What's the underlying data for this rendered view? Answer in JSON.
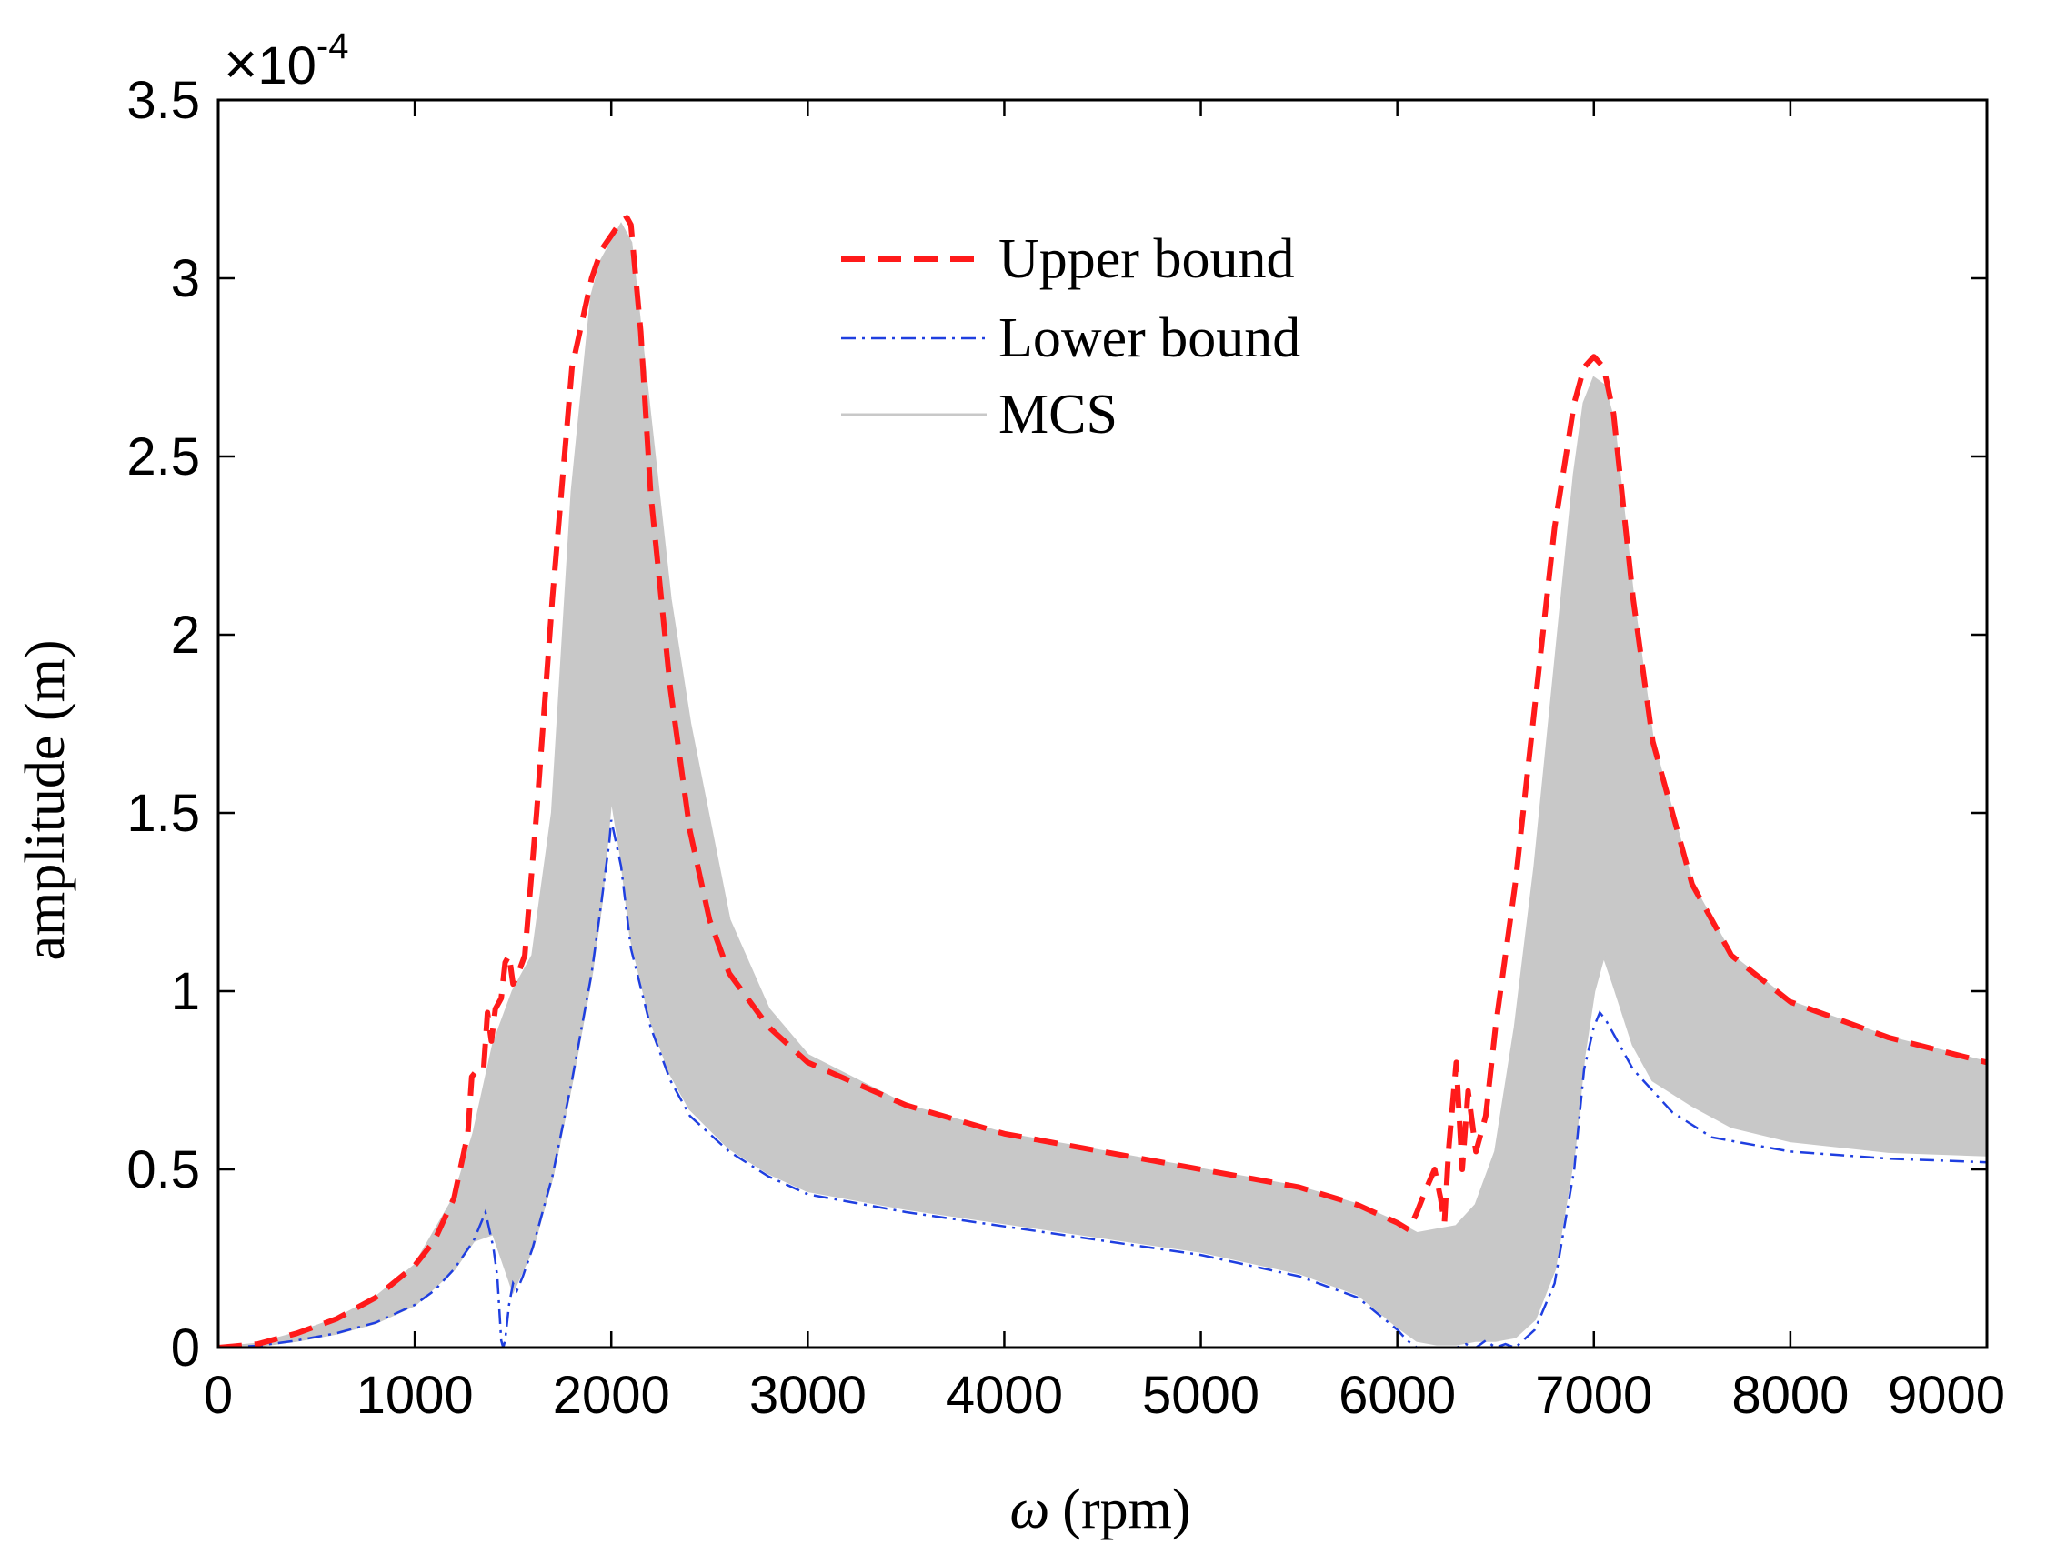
{
  "chart_data": {
    "type": "line",
    "title": "",
    "xlabel_symbol": "ω",
    "xlabel_unit": "(rpm)",
    "ylabel": "amplitude (m)",
    "y_multiplier": {
      "times": "×",
      "base": "10",
      "exponent": "-4"
    },
    "xlim": [
      0,
      9000
    ],
    "ylim": [
      0,
      3.5
    ],
    "x_ticks": [
      0,
      1000,
      2000,
      3000,
      4000,
      5000,
      6000,
      7000,
      8000,
      9000
    ],
    "x_tick_labels": [
      "0",
      "1000",
      "2000",
      "3000",
      "4000",
      "5000",
      "6000",
      "7000",
      "8000",
      "9000"
    ],
    "y_ticks": [
      0,
      0.5,
      1,
      1.5,
      2,
      2.5,
      3,
      3.5
    ],
    "y_tick_labels": [
      "0",
      "0.5",
      "1",
      "1.5",
      "2",
      "2.5",
      "3",
      "3.5"
    ],
    "grid": false,
    "legend_position": "top-center",
    "colors": {
      "upper": "#ff1a1a",
      "lower": "#1f3fe0",
      "mcs": "#c8c8c8"
    },
    "series": [
      {
        "name": "Upper bound",
        "style": "dashed",
        "x": [
          0,
          200,
          400,
          600,
          800,
          1000,
          1100,
          1200,
          1270,
          1290,
          1320,
          1350,
          1370,
          1390,
          1410,
          1440,
          1460,
          1480,
          1500,
          1520,
          1560,
          1620,
          1700,
          1800,
          1900,
          1950,
          2000,
          2050,
          2080,
          2100,
          2150,
          2200,
          2300,
          2400,
          2500,
          2600,
          2800,
          3000,
          3500,
          4000,
          4500,
          5000,
          5500,
          5800,
          6000,
          6060,
          6100,
          6150,
          6190,
          6220,
          6240,
          6260,
          6300,
          6330,
          6360,
          6400,
          6450,
          6500,
          6600,
          6700,
          6800,
          6900,
          6950,
          7000,
          7050,
          7100,
          7200,
          7300,
          7500,
          7700,
          8000,
          8500,
          9000
        ],
        "values": [
          0.0,
          0.01,
          0.04,
          0.08,
          0.14,
          0.23,
          0.3,
          0.42,
          0.6,
          0.76,
          0.78,
          0.78,
          0.94,
          0.86,
          0.95,
          0.98,
          1.08,
          1.1,
          1.02,
          1.04,
          1.1,
          1.5,
          2.1,
          2.75,
          3.0,
          3.08,
          3.12,
          3.16,
          3.17,
          3.15,
          2.85,
          2.4,
          1.85,
          1.45,
          1.2,
          1.05,
          0.9,
          0.8,
          0.68,
          0.6,
          0.55,
          0.5,
          0.45,
          0.4,
          0.35,
          0.33,
          0.38,
          0.45,
          0.5,
          0.42,
          0.35,
          0.55,
          0.8,
          0.5,
          0.72,
          0.55,
          0.65,
          0.9,
          1.3,
          1.8,
          2.3,
          2.65,
          2.75,
          2.78,
          2.75,
          2.62,
          2.1,
          1.7,
          1.3,
          1.1,
          0.97,
          0.87,
          0.8
        ]
      },
      {
        "name": "Lower bound",
        "style": "dash-dot",
        "x": [
          0,
          200,
          400,
          600,
          800,
          1000,
          1100,
          1200,
          1300,
          1360,
          1400,
          1420,
          1440,
          1450,
          1460,
          1480,
          1500,
          1520,
          1550,
          1600,
          1700,
          1800,
          1900,
          1950,
          1990,
          2000,
          2050,
          2100,
          2200,
          2300,
          2400,
          2600,
          2800,
          3000,
          3500,
          4000,
          4500,
          5000,
          5500,
          5800,
          6000,
          6050,
          6100,
          6200,
          6300,
          6350,
          6380,
          6400,
          6450,
          6500,
          6550,
          6600,
          6700,
          6800,
          6900,
          6950,
          7000,
          7030,
          7060,
          7100,
          7200,
          7400,
          7600,
          8000,
          8500,
          9000
        ],
        "values": [
          0.0,
          0.005,
          0.02,
          0.04,
          0.07,
          0.12,
          0.16,
          0.22,
          0.3,
          0.38,
          0.28,
          0.2,
          0.02,
          0.0,
          0.02,
          0.12,
          0.18,
          0.16,
          0.2,
          0.28,
          0.48,
          0.75,
          1.05,
          1.25,
          1.42,
          1.48,
          1.35,
          1.12,
          0.9,
          0.75,
          0.65,
          0.55,
          0.48,
          0.43,
          0.38,
          0.34,
          0.3,
          0.26,
          0.2,
          0.14,
          0.05,
          0.02,
          0.0,
          0.0,
          0.0,
          0.01,
          0.0,
          0.0,
          0.02,
          0.0,
          0.01,
          0.0,
          0.05,
          0.18,
          0.5,
          0.78,
          0.9,
          0.94,
          0.92,
          0.88,
          0.78,
          0.66,
          0.59,
          0.55,
          0.53,
          0.52
        ]
      },
      {
        "name": "MCS",
        "style": "band",
        "x": [
          0,
          200,
          400,
          600,
          800,
          1000,
          1200,
          1300,
          1400,
          1500,
          1600,
          1700,
          1800,
          1900,
          1950,
          2000,
          2050,
          2100,
          2200,
          2300,
          2400,
          2600,
          2800,
          3000,
          3500,
          4000,
          4500,
          5000,
          5500,
          5800,
          6000,
          6100,
          6200,
          6300,
          6400,
          6500,
          6600,
          6700,
          6800,
          6900,
          6950,
          7000,
          7050,
          7100,
          7200,
          7300,
          7500,
          7700,
          8000,
          8500,
          9000
        ],
        "upper": [
          0.0,
          0.01,
          0.04,
          0.08,
          0.14,
          0.23,
          0.42,
          0.6,
          0.85,
          1.0,
          1.1,
          1.5,
          2.4,
          2.95,
          3.05,
          3.1,
          3.15,
          3.1,
          2.6,
          2.1,
          1.75,
          1.2,
          0.95,
          0.82,
          0.68,
          0.6,
          0.55,
          0.5,
          0.45,
          0.4,
          0.35,
          0.32,
          0.33,
          0.34,
          0.4,
          0.55,
          0.9,
          1.35,
          1.9,
          2.45,
          2.65,
          2.72,
          2.7,
          2.6,
          2.1,
          1.7,
          1.3,
          1.1,
          0.97,
          0.87,
          0.8
        ],
        "lower": [
          0.0,
          0.005,
          0.02,
          0.04,
          0.07,
          0.12,
          0.22,
          0.3,
          0.32,
          0.16,
          0.28,
          0.48,
          0.75,
          1.05,
          1.25,
          1.55,
          1.38,
          1.15,
          0.92,
          0.77,
          0.67,
          0.56,
          0.49,
          0.44,
          0.39,
          0.35,
          0.31,
          0.27,
          0.21,
          0.15,
          0.06,
          0.02,
          0.01,
          0.01,
          0.02,
          0.02,
          0.03,
          0.08,
          0.22,
          0.55,
          0.82,
          1.0,
          1.1,
          1.02,
          0.85,
          0.75,
          0.68,
          0.62,
          0.58,
          0.55,
          0.54
        ]
      }
    ]
  }
}
